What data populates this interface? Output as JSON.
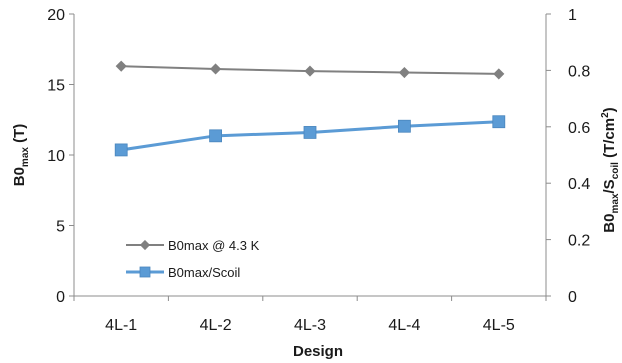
{
  "chart_data": {
    "type": "line",
    "categories": [
      "4L-1",
      "4L-2",
      "4L-3",
      "4L-4",
      "4L-5"
    ],
    "xlabel": "Design",
    "ylabel_left": {
      "main": "B0",
      "sub": "max",
      "tail": " (T)"
    },
    "ylabel_right": {
      "p1": "B0",
      "s1": "max",
      "p2": "/S",
      "s2": "coil",
      "p3": " (T/cm",
      "sup": "2",
      "p4": ")"
    },
    "y_left": {
      "lim": [
        0,
        20
      ],
      "ticks": [
        "0",
        "5",
        "10",
        "15",
        "20"
      ]
    },
    "y_right": {
      "lim": [
        0,
        1
      ],
      "ticks": [
        "0",
        "0.2",
        "0.4",
        "0.6",
        "0.8",
        "1"
      ]
    },
    "grid": false,
    "legend_position": "lower-left",
    "series": [
      {
        "name": "B0max @ 4.3 K",
        "axis": "left",
        "marker": "diamond",
        "color": "#808080",
        "values": [
          16.3,
          16.1,
          15.95,
          15.85,
          15.75
        ]
      },
      {
        "name": "B0max/Scoil",
        "axis": "right",
        "marker": "square",
        "color": "#5B9BD5",
        "values": [
          0.518,
          0.568,
          0.58,
          0.602,
          0.618
        ]
      }
    ]
  }
}
